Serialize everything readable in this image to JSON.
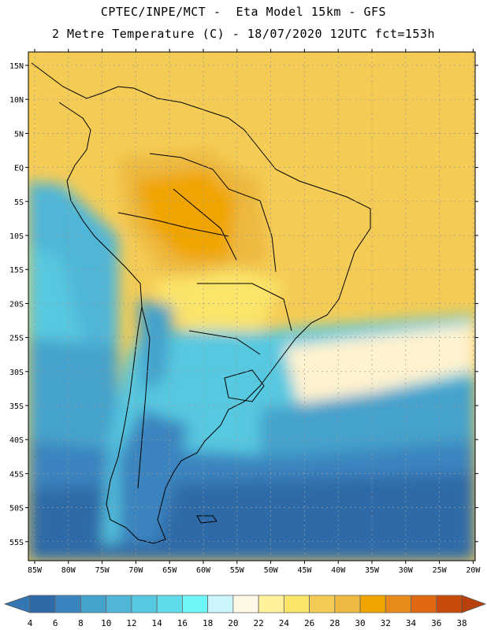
{
  "header": {
    "line1": "CPTEC/INPE/MCT -  Eta Model 15km - GFS",
    "line2": "2 Metre Temperature (C) - 18/07/2020 12UTC fct=153h"
  },
  "axes": {
    "lat_labels": [
      "15N",
      "10N",
      "5N",
      "EQ",
      "5S",
      "10S",
      "15S",
      "20S",
      "25S",
      "30S",
      "35S",
      "40S",
      "45S",
      "50S",
      "55S"
    ],
    "lon_labels": [
      "85W",
      "80W",
      "75W",
      "70W",
      "65W",
      "60W",
      "55W",
      "50W",
      "45W",
      "40W",
      "35W",
      "30W",
      "25W",
      "20W"
    ]
  },
  "colorbar": {
    "labels": [
      "4",
      "6",
      "8",
      "10",
      "12",
      "14",
      "16",
      "18",
      "20",
      "22",
      "24",
      "26",
      "28",
      "30",
      "32",
      "34",
      "36",
      "38"
    ],
    "colors": [
      "#2f6aa8",
      "#3a84bf",
      "#45a2cc",
      "#4fb6d8",
      "#56c8e0",
      "#5fdbe9",
      "#6ef5f7",
      "#c9f5fb",
      "#fff8e6",
      "#fff29a",
      "#fbe46a",
      "#f4cc55",
      "#edb940",
      "#f0a400",
      "#e88a1a",
      "#e06810",
      "#c84a08"
    ],
    "low_color": "#3476b3",
    "high_color": "#b8400a"
  }
}
